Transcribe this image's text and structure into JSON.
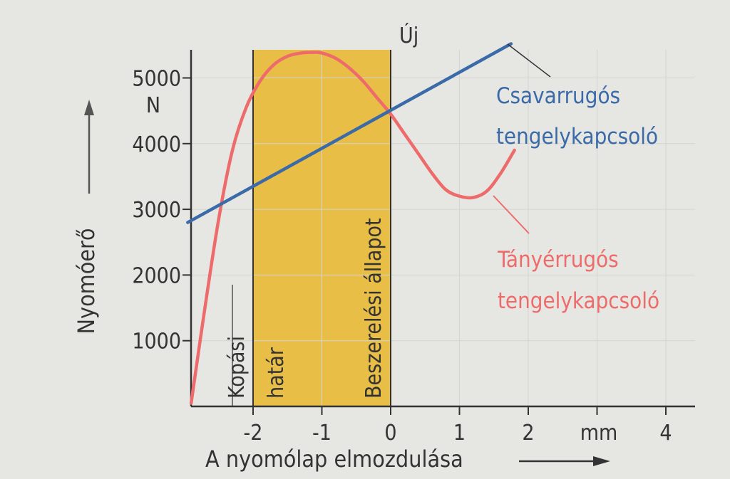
{
  "chart_data": {
    "type": "line",
    "xlabel": "A nyomólap elmozdulása",
    "x_unit": "mm",
    "ylabel": "Nyomóerő",
    "y_unit": "N",
    "xlim": [
      -2.95,
      4.4
    ],
    "ylim": [
      0,
      5400
    ],
    "x_ticks": [
      -2,
      -1,
      0,
      1,
      2,
      3,
      4
    ],
    "x_tick_labels": [
      "-2",
      "-1",
      "0",
      "1",
      "2",
      "",
      "4"
    ],
    "x_unit_tick": 3,
    "y_ticks": [
      1000,
      2000,
      3000,
      4000,
      5000
    ],
    "y_tick_labels": [
      "1000",
      "2000",
      "3000",
      "4000",
      "5000"
    ],
    "grid": true,
    "shaded_region": {
      "x": [
        -2,
        0
      ],
      "color": "#e8b830",
      "labels": [
        "határ",
        "Beszerelési állapot"
      ]
    },
    "vertical_lines": [
      {
        "x": -2.3,
        "label": "Kopási"
      },
      {
        "x": 0,
        "label": "Új"
      }
    ],
    "series": [
      {
        "name": "Csavarrugós tengelykapcsoló",
        "color": "#3a6aa8",
        "x": [
          -2.95,
          1.75
        ],
        "y": [
          2800,
          5520
        ]
      },
      {
        "name": "Tányérrugós tengelykapcsoló",
        "color": "#ee6b6b",
        "x": [
          -2.9,
          -2.7,
          -2.5,
          -2.3,
          -2.1,
          -1.9,
          -1.7,
          -1.5,
          -1.3,
          -1.1,
          -1.0,
          -0.8,
          -0.6,
          -0.4,
          -0.2,
          0.0,
          0.2,
          0.4,
          0.6,
          0.8,
          1.0,
          1.2,
          1.4,
          1.6,
          1.8
        ],
        "y": [
          50,
          1500,
          2850,
          3900,
          4550,
          4950,
          5200,
          5330,
          5380,
          5390,
          5380,
          5300,
          5150,
          4950,
          4700,
          4450,
          4150,
          3850,
          3550,
          3300,
          3200,
          3180,
          3280,
          3550,
          3900
        ]
      }
    ]
  }
}
